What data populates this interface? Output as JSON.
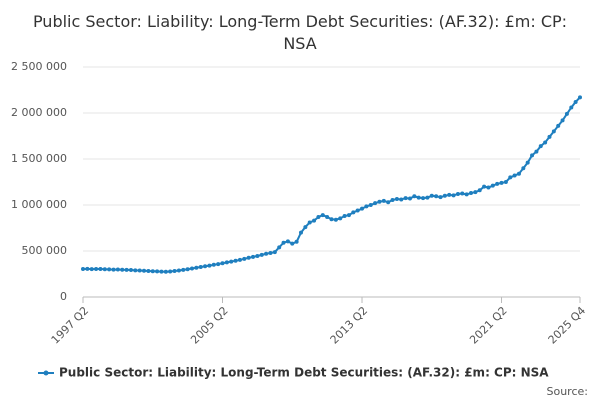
{
  "chart_data": {
    "type": "line",
    "title": "Public Sector: Liability: Long-Term Debt Securities: (AF.32): £m: CP: NSA",
    "source": "Source:",
    "categories": [
      "1997 Q2",
      null,
      null,
      null,
      null,
      null,
      null,
      null,
      null,
      null,
      null,
      null,
      null,
      null,
      null,
      null,
      null,
      null,
      null,
      null,
      null,
      null,
      null,
      null,
      null,
      null,
      null,
      null,
      null,
      null,
      null,
      null,
      "2005 Q2",
      null,
      null,
      null,
      null,
      null,
      null,
      null,
      null,
      null,
      null,
      null,
      null,
      null,
      null,
      null,
      null,
      null,
      null,
      null,
      null,
      null,
      null,
      null,
      null,
      null,
      null,
      null,
      null,
      null,
      null,
      null,
      "2013 Q2",
      null,
      null,
      null,
      null,
      null,
      null,
      null,
      null,
      null,
      null,
      null,
      null,
      null,
      null,
      null,
      null,
      null,
      null,
      null,
      null,
      null,
      null,
      null,
      null,
      null,
      null,
      null,
      null,
      null,
      null,
      null,
      "2021 Q2",
      null,
      null,
      null,
      null,
      null,
      null,
      null,
      null,
      null,
      null,
      null,
      null,
      null,
      null,
      null,
      null,
      null,
      "2025 Q4"
    ],
    "series": [
      {
        "name": "Public Sector: Liability: Long-Term Debt Securities: (AF.32): £m: CP: NSA",
        "color": "#1f7fbf",
        "values": [
          305000,
          306000,
          303000,
          305000,
          304000,
          301000,
          300000,
          298000,
          299000,
          296000,
          295000,
          293000,
          290000,
          288000,
          285000,
          283000,
          280000,
          278000,
          276000,
          275000,
          277000,
          282000,
          288000,
          295000,
          302000,
          310000,
          318000,
          326000,
          334000,
          341000,
          350000,
          358000,
          367000,
          376000,
          385000,
          394000,
          403000,
          415000,
          426000,
          436000,
          446000,
          458000,
          470000,
          478000,
          488000,
          540000,
          590000,
          605000,
          580000,
          600000,
          700000,
          760000,
          810000,
          830000,
          870000,
          890000,
          870000,
          845000,
          840000,
          855000,
          880000,
          890000,
          920000,
          940000,
          960000,
          985000,
          1000000,
          1020000,
          1035000,
          1045000,
          1030000,
          1055000,
          1065000,
          1060000,
          1075000,
          1070000,
          1095000,
          1080000,
          1075000,
          1080000,
          1100000,
          1095000,
          1085000,
          1100000,
          1110000,
          1105000,
          1120000,
          1125000,
          1115000,
          1130000,
          1140000,
          1160000,
          1200000,
          1190000,
          1210000,
          1230000,
          1240000,
          1250000,
          1300000,
          1320000,
          1340000,
          1400000,
          1460000,
          1540000,
          1580000,
          1640000,
          1680000,
          1740000,
          1800000,
          1860000,
          1920000,
          1990000,
          2060000,
          2120000,
          2170000
        ]
      }
    ],
    "ylim": [
      0,
      2500000
    ],
    "yticks": [
      0,
      {
        "value": 500000,
        "label": "500 000"
      },
      {
        "value": 1000000,
        "label": "1 000 000"
      },
      {
        "value": 1500000,
        "label": "1 500 000"
      },
      {
        "value": 2000000,
        "label": "2 000 000"
      },
      {
        "value": 2500000,
        "label": "2 500 000"
      }
    ],
    "grid": true,
    "legend": "bottom"
  }
}
